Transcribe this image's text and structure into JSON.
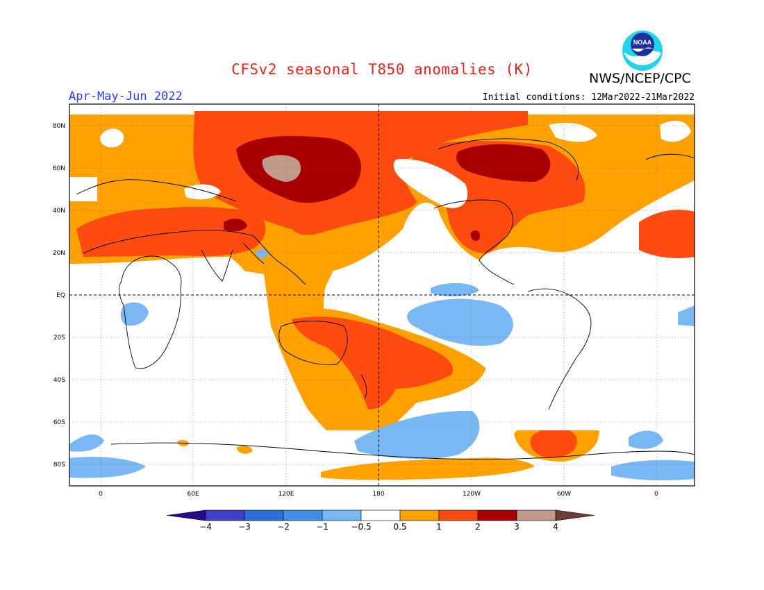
{
  "title": "CFSv2 seasonal T850 anomalies (K)",
  "agency": "NWS/NCEP/CPC",
  "logo_text": "NOAA",
  "season": "Apr-May-Jun 2022",
  "initial_conditions": "Initial conditions: 12Mar2022-21Mar2022",
  "lat_labels": [
    "80N",
    "60N",
    "40N",
    "20N",
    "EQ",
    "20S",
    "40S",
    "60S",
    "80S"
  ],
  "lon_labels": [
    "0",
    "60E",
    "120E",
    "180",
    "120W",
    "60W",
    "0"
  ],
  "colorbar": {
    "labels": [
      "−4",
      "−3",
      "−2",
      "−1",
      "−0.5",
      "0.5",
      "1",
      "2",
      "3",
      "4"
    ],
    "colors": [
      "#2a0a8c",
      "#3f3fc8",
      "#2a6fd8",
      "#3f8fe8",
      "#7ab8f5",
      "#ffffff",
      "#ffa100",
      "#ff4b0f",
      "#a80000",
      "#c29a8a",
      "#6b3f35"
    ]
  }
}
